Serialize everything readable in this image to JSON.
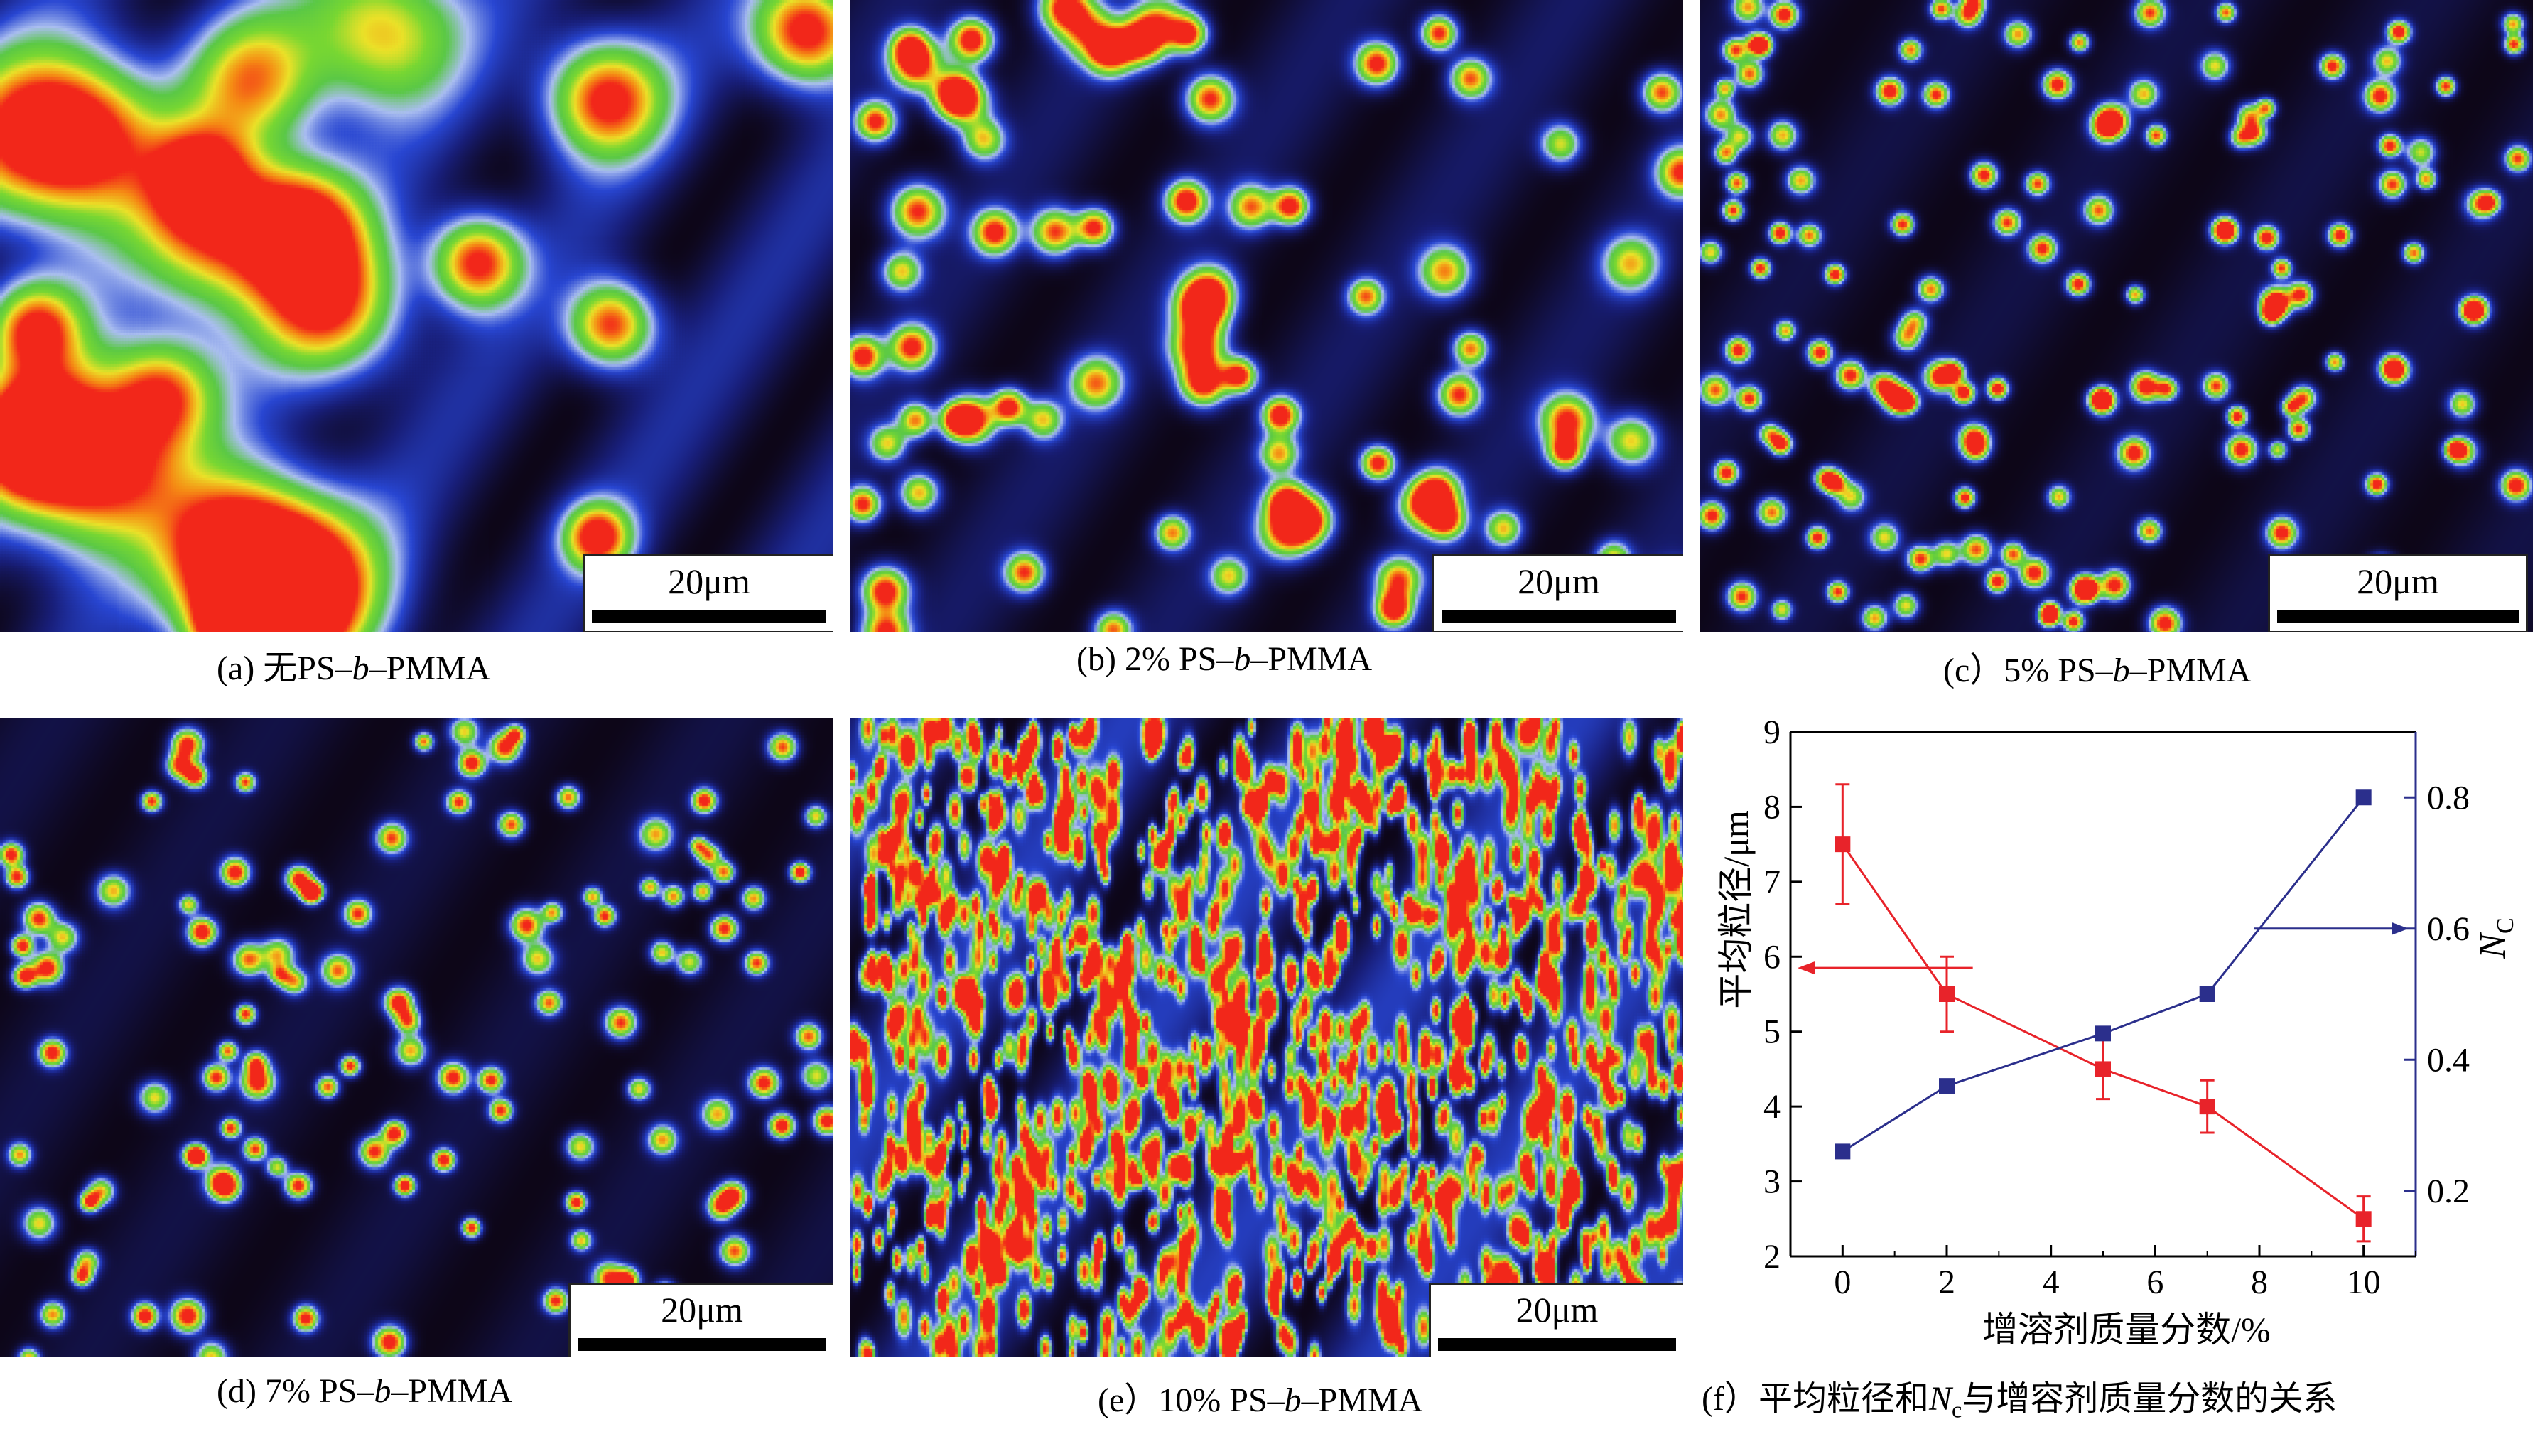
{
  "panels": [
    {
      "id": "a",
      "caption_prefix": "(a) 无PS–",
      "caption_italic": "b",
      "caption_suffix": "–PMMA",
      "scale_label": "20μm"
    },
    {
      "id": "b",
      "caption_prefix": "(b) 2% PS–",
      "caption_italic": "b",
      "caption_suffix": "–PMMA",
      "scale_label": "20μm"
    },
    {
      "id": "c",
      "caption_prefix": "(c）5% PS–",
      "caption_italic": "b",
      "caption_suffix": "–PMMA",
      "scale_label": "20μm"
    },
    {
      "id": "d",
      "caption_prefix": "(d) 7% PS–",
      "caption_italic": "b",
      "caption_suffix": "–PMMA",
      "scale_label": "20μm"
    },
    {
      "id": "e",
      "caption_prefix": "(e）10% PS–",
      "caption_italic": "b",
      "caption_suffix": "–PMMA",
      "scale_label": "20μm"
    }
  ],
  "colors": {
    "red_series": "#e8232a",
    "blue_series": "#2b2f8c",
    "heat_bg": "#0d0618",
    "heat_blue": "#1f2ea8",
    "heat_green": "#5fd43a",
    "heat_red": "#f2261a"
  },
  "chart_caption": {
    "prefix": "(f）平均粒径和",
    "symbol": "N",
    "subscript": "c",
    "suffix": "与增容剂质量分数的关系"
  },
  "chart_data": {
    "type": "line",
    "xlabel": "增溶剂质量分数/%",
    "ylabel_left": "平均粒径/μm",
    "ylabel_right_symbol": "N",
    "ylabel_right_sub": "C",
    "xlim": [
      -1,
      11
    ],
    "ylim_left": [
      2,
      9
    ],
    "ylim_right": [
      0.1,
      0.9
    ],
    "x_ticks": [
      0,
      2,
      4,
      6,
      8,
      10
    ],
    "y_left_ticks": [
      2,
      3,
      4,
      5,
      6,
      7,
      8,
      9
    ],
    "y_right_ticks": [
      "0.2",
      "0.4",
      "0.6",
      "0.8"
    ],
    "grid": false,
    "series": [
      {
        "axis": "left",
        "marker": "square",
        "color": "#e8232a",
        "x": [
          0,
          2,
          5,
          7,
          10
        ],
        "y": [
          7.5,
          5.5,
          4.5,
          4.0,
          2.5
        ],
        "err": [
          0.8,
          0.5,
          0.4,
          0.35,
          0.3
        ]
      },
      {
        "axis": "right",
        "marker": "square",
        "color": "#2b2f8c",
        "x": [
          0,
          2,
          5,
          7,
          10
        ],
        "y": [
          0.26,
          0.36,
          0.44,
          0.5,
          0.8
        ]
      }
    ]
  }
}
